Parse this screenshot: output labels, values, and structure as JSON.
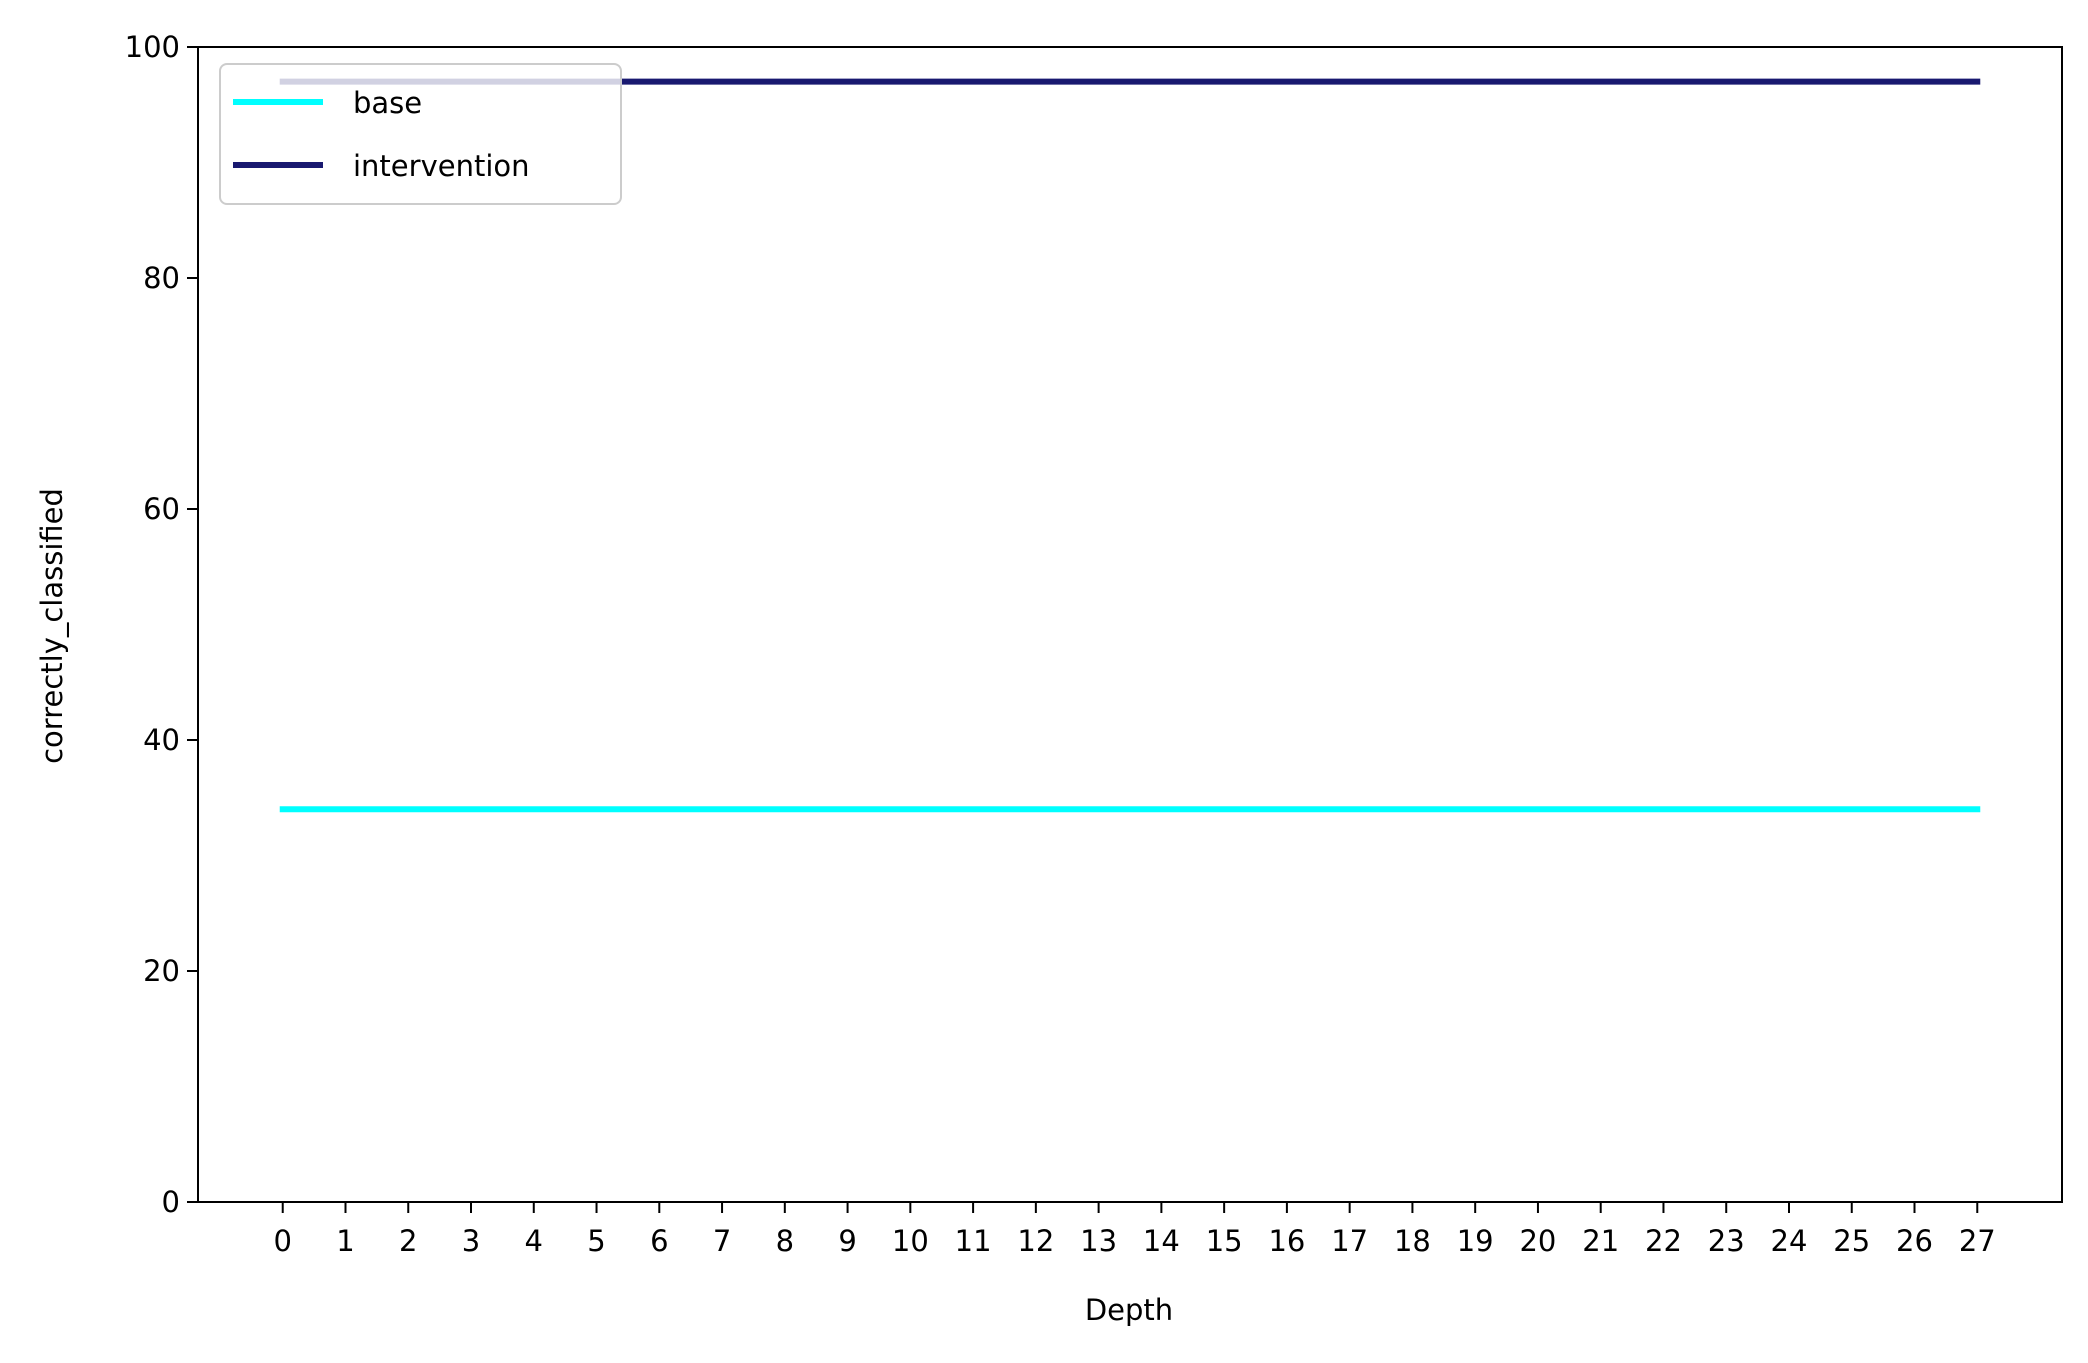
{
  "chart_data": {
    "type": "line",
    "title": "",
    "xlabel": "Depth",
    "ylabel": "correctly_classified",
    "x": [
      0,
      1,
      2,
      3,
      4,
      5,
      6,
      7,
      8,
      9,
      10,
      11,
      12,
      13,
      14,
      15,
      16,
      17,
      18,
      19,
      20,
      21,
      22,
      23,
      24,
      25,
      26,
      27
    ],
    "xlim": [
      -1.35,
      28.35
    ],
    "ylim": [
      0,
      100
    ],
    "yticks": [
      0,
      20,
      40,
      60,
      80,
      100
    ],
    "grid": false,
    "legend_position": "upper-left",
    "series": [
      {
        "name": "base",
        "color": "#00FFFF",
        "values": [
          34,
          34,
          34,
          34,
          34,
          34,
          34,
          34,
          34,
          34,
          34,
          34,
          34,
          34,
          34,
          34,
          34,
          34,
          34,
          34,
          34,
          34,
          34,
          34,
          34,
          34,
          34,
          34
        ]
      },
      {
        "name": "intervention",
        "color": "#191970",
        "values": [
          97,
          97,
          97,
          97,
          97,
          97,
          97,
          97,
          97,
          97,
          97,
          97,
          97,
          97,
          97,
          97,
          97,
          97,
          97,
          97,
          97,
          97,
          97,
          97,
          97,
          97,
          97,
          97
        ]
      }
    ]
  }
}
